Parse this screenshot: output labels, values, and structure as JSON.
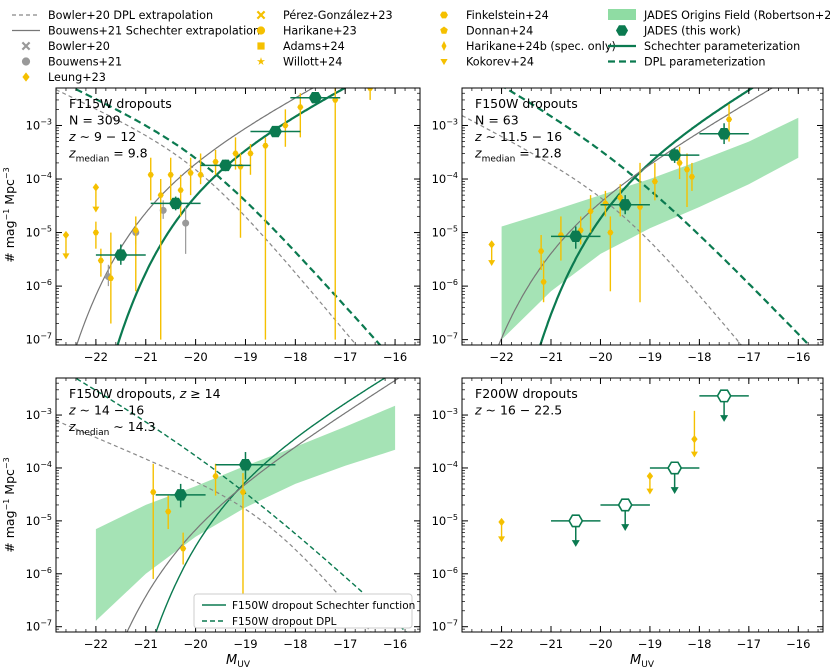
{
  "legend": {
    "columns": [
      [
        {
          "label": "Bowler+20 DPL extrapolation",
          "kind": "line",
          "color": "#888888",
          "dash": "4,3"
        },
        {
          "label": "Bouwens+21 Schechter extrapolation",
          "kind": "line",
          "color": "#777777",
          "dash": ""
        },
        {
          "label": "Bowler+20",
          "kind": "marker",
          "marker": "x",
          "color": "#999999"
        },
        {
          "label": "Bouwens+21",
          "kind": "marker",
          "marker": "circle",
          "color": "#999999"
        },
        {
          "label": "Leung+23",
          "kind": "marker",
          "marker": "diamond",
          "color": "#f5c000"
        }
      ],
      [
        {
          "label": "Pérez-González+23",
          "kind": "marker",
          "marker": "x",
          "color": "#f5c000"
        },
        {
          "label": "Harikane+23",
          "kind": "marker",
          "marker": "circle",
          "color": "#f5c000"
        },
        {
          "label": "Adams+24",
          "kind": "marker",
          "marker": "square",
          "color": "#f5c000"
        },
        {
          "label": "Willott+24",
          "kind": "marker",
          "marker": "star",
          "color": "#f5c000"
        }
      ],
      [
        {
          "label": "Finkelstein+24",
          "kind": "marker",
          "marker": "hexagon",
          "color": "#f5c000"
        },
        {
          "label": "Donnan+24",
          "kind": "marker",
          "marker": "pentagon",
          "color": "#f5c000"
        },
        {
          "label": "Harikane+24b (spec. only)",
          "kind": "marker",
          "marker": "thin-diamond",
          "color": "#f5c000"
        },
        {
          "label": "Kokorev+24",
          "kind": "marker",
          "marker": "triangle-down",
          "color": "#f5c000"
        }
      ],
      [
        {
          "label": "JADES Origins Field (Robertson+24)",
          "kind": "band",
          "color": "#8fdca3"
        },
        {
          "label": "JADES (this work)",
          "kind": "marker",
          "marker": "hexagon",
          "color": "#0b7a50"
        },
        {
          "label": "Schechter parameterization",
          "kind": "line",
          "color": "#0b7a50",
          "dash": ""
        },
        {
          "label": "DPL parameterization",
          "kind": "line",
          "color": "#0b7a50",
          "dash": "7,4"
        }
      ]
    ]
  },
  "colors": {
    "jades": "#0b7a50",
    "lit": "#f5c000",
    "band": "#8fdca3",
    "grey": "#888888"
  },
  "axes": {
    "xlabel": "M",
    "xlabel_sub": "UV",
    "ylabel": "#  mag",
    "ylabel_sup1": "−1",
    "ylabel_mid": " Mpc",
    "ylabel_sup2": "−3"
  },
  "chart_data": [
    {
      "type": "scatter",
      "panel": "top-left",
      "title_lines": [
        "F115W dropouts",
        "N = 309",
        "z ∼ 9 − 12",
        "z_median = 9.8"
      ],
      "xlim": [
        -22.8,
        -15.5
      ],
      "ylim_log10": [
        -7.1,
        -2.3
      ],
      "xticks": [
        -22,
        -21,
        -20,
        -19,
        -18,
        -17,
        -16
      ],
      "yticks_log10": [
        -7,
        -6,
        -5,
        -4,
        -3
      ],
      "jades": [
        {
          "x": -21.5,
          "y": 3.8e-06,
          "xerr": 0.5,
          "ylo": 2.5e-06,
          "yhi": 6e-06
        },
        {
          "x": -20.4,
          "y": 3.5e-05,
          "xerr": 0.5,
          "ylo": 2.6e-05,
          "yhi": 4.7e-05
        },
        {
          "x": -19.4,
          "y": 0.00018,
          "xerr": 0.5,
          "ylo": 0.00014,
          "yhi": 0.00023
        },
        {
          "x": -18.4,
          "y": 0.00077,
          "xerr": 0.5,
          "ylo": 0.00062,
          "yhi": 0.00096
        },
        {
          "x": -17.6,
          "y": 0.0033,
          "xerr": 0.5,
          "ylo": 0.0028,
          "yhi": 0.0039
        }
      ],
      "literature": [
        {
          "x": -22.6,
          "y": 9e-06,
          "ylo": 4e-06,
          "yhi": 9e-06,
          "upper": true
        },
        {
          "x": -22.0,
          "y": 7e-05,
          "ylo": 3e-05,
          "yhi": 7e-05,
          "upper": true
        },
        {
          "x": -22.0,
          "y": 1e-05,
          "ylo": 5e-06,
          "yhi": 1.6e-05
        },
        {
          "x": -21.9,
          "y": 3e-06,
          "ylo": 1.5e-06,
          "yhi": 5e-06
        },
        {
          "x": -21.7,
          "y": 1.4e-06,
          "ylo": 2e-07,
          "yhi": 1e-05
        },
        {
          "x": -21.2,
          "y": 1.1e-05,
          "ylo": 8e-07,
          "yhi": 2e-05
        },
        {
          "x": -20.9,
          "y": 0.00012,
          "ylo": 4e-05,
          "yhi": 0.00025
        },
        {
          "x": -20.7,
          "y": 5e-05,
          "ylo": 1e-07,
          "yhi": 0.0001
        },
        {
          "x": -20.5,
          "y": 0.00012,
          "ylo": 4e-05,
          "yhi": 0.00025
        },
        {
          "x": -20.3,
          "y": 6.2e-05,
          "ylo": 2e-05,
          "yhi": 0.00012
        },
        {
          "x": -20.1,
          "y": 0.00013,
          "ylo": 5e-05,
          "yhi": 0.00025
        },
        {
          "x": -19.9,
          "y": 0.00012,
          "ylo": 8e-05,
          "yhi": 0.0003
        },
        {
          "x": -19.6,
          "y": 0.00021,
          "ylo": 0.00012,
          "yhi": 0.00035
        },
        {
          "x": -19.2,
          "y": 0.0003,
          "ylo": 0.00015,
          "yhi": 0.0006
        },
        {
          "x": -19.1,
          "y": 0.00017,
          "ylo": 8e-06,
          "yhi": 0.0003
        },
        {
          "x": -18.9,
          "y": 0.0003,
          "ylo": 0.00012,
          "yhi": 0.00045
        },
        {
          "x": -18.6,
          "y": 0.00042,
          "ylo": 1e-07,
          "yhi": 0.0006
        },
        {
          "x": -18.2,
          "y": 0.001,
          "ylo": 0.0004,
          "yhi": 0.002
        },
        {
          "x": -17.9,
          "y": 0.0022,
          "ylo": 0.0006,
          "yhi": 0.004
        },
        {
          "x": -17.2,
          "y": 0.003,
          "ylo": 1e-07,
          "yhi": 0.005
        },
        {
          "x": -16.5,
          "y": 0.005,
          "ylo": 0.003,
          "yhi": 0.008
        }
      ],
      "grey_points": [
        {
          "x": -21.75,
          "y": 1.5e-06,
          "ylo": 1e-06,
          "yhi": 2.5e-06
        },
        {
          "x": -21.2,
          "y": 1e-05,
          "ylo": 6e-06,
          "yhi": 1.6e-05
        },
        {
          "x": -20.65,
          "y": 2.6e-05,
          "ylo": 1.8e-05,
          "yhi": 4e-05
        },
        {
          "x": -20.2,
          "y": 1.5e-05,
          "ylo": 4e-06,
          "yhi": 3e-05
        }
      ],
      "curves": [
        {
          "name": "Schechter",
          "color": "#0b7a50",
          "dash": "",
          "width": 2.2,
          "phi": 0.00034,
          "M": -19.6,
          "a": -2.2,
          "kind": "schechter"
        },
        {
          "name": "DPL",
          "color": "#0b7a50",
          "dash": "7,4",
          "width": 2.2,
          "phi": 0.00035,
          "M": -19.8,
          "a": -2.1,
          "b": -3.6,
          "kind": "dpl"
        },
        {
          "name": "Bowler+20 DPL",
          "color": "#888888",
          "dash": "4,3",
          "width": 1.2,
          "phi": 0.00025,
          "M": -19.9,
          "a": -2.1,
          "b": -3.8,
          "kind": "dpl"
        },
        {
          "name": "Bouwens+21",
          "color": "#777777",
          "dash": "",
          "width": 1.2,
          "phi": 0.00022,
          "M": -20.5,
          "a": -2.25,
          "kind": "schechter"
        }
      ]
    },
    {
      "type": "scatter",
      "panel": "top-right",
      "title_lines": [
        "F150W dropouts",
        "N = 63",
        "z ∼ 11.5 − 16",
        "z_median = 12.8"
      ],
      "xlim": [
        -22.8,
        -15.5
      ],
      "ylim_log10": [
        -7.1,
        -2.3
      ],
      "xticks": [
        -22,
        -21,
        -20,
        -19,
        -18,
        -17,
        -16
      ],
      "yticks_log10": [
        -7,
        -6,
        -5,
        -4,
        -3
      ],
      "band": {
        "x": [
          -22,
          -21,
          -20,
          -19,
          -18,
          -17,
          -16
        ],
        "lo": [
          1e-07,
          8e-07,
          4e-06,
          1.2e-05,
          3e-05,
          8e-05,
          0.00025
        ],
        "hi": [
          1.3e-05,
          2.5e-05,
          5e-05,
          0.0001,
          0.00022,
          0.0005,
          0.0014
        ]
      },
      "jades": [
        {
          "x": -20.5,
          "y": 8.5e-06,
          "xerr": 0.5,
          "ylo": 5e-06,
          "yhi": 1.3e-05
        },
        {
          "x": -19.5,
          "y": 3.3e-05,
          "xerr": 0.5,
          "ylo": 2.2e-05,
          "yhi": 5e-05
        },
        {
          "x": -18.5,
          "y": 0.00028,
          "xerr": 0.5,
          "ylo": 0.0002,
          "yhi": 0.00038
        },
        {
          "x": -17.5,
          "y": 0.0007,
          "xerr": 0.5,
          "ylo": 0.00045,
          "yhi": 0.0011
        }
      ],
      "literature": [
        {
          "x": -22.2,
          "y": 6e-06,
          "ylo": 3e-06,
          "yhi": 6e-06,
          "upper": true
        },
        {
          "x": -21.2,
          "y": 4.5e-06,
          "ylo": 2e-06,
          "yhi": 9e-06
        },
        {
          "x": -21.15,
          "y": 1.2e-06,
          "ylo": 5e-07,
          "yhi": 3e-06
        },
        {
          "x": -20.8,
          "y": 9e-06,
          "ylo": 3e-06,
          "yhi": 2e-05
        },
        {
          "x": -20.4,
          "y": 1.1e-05,
          "ylo": 6e-06,
          "yhi": 2e-05
        },
        {
          "x": -20.2,
          "y": 2.5e-05,
          "ylo": 1e-05,
          "yhi": 5e-05
        },
        {
          "x": -19.9,
          "y": 3.5e-05,
          "ylo": 2e-05,
          "yhi": 6e-05
        },
        {
          "x": -19.8,
          "y": 1e-05,
          "ylo": 8e-07,
          "yhi": 2e-05
        },
        {
          "x": -19.6,
          "y": 4.5e-05,
          "ylo": 2e-05,
          "yhi": 8e-05
        },
        {
          "x": -19.2,
          "y": 3e-05,
          "ylo": 5e-07,
          "yhi": 0.0002
        },
        {
          "x": -18.9,
          "y": 9e-05,
          "ylo": 4e-05,
          "yhi": 0.0002
        },
        {
          "x": -18.4,
          "y": 0.0002,
          "ylo": 0.0001,
          "yhi": 0.0004
        },
        {
          "x": -18.25,
          "y": 0.00015,
          "ylo": 3e-05,
          "yhi": 0.0003
        },
        {
          "x": -18.15,
          "y": 0.00011,
          "ylo": 6e-05,
          "yhi": 0.0002
        },
        {
          "x": -17.4,
          "y": 0.0013,
          "ylo": 0.0005,
          "yhi": 0.0025
        }
      ],
      "grey_points": [],
      "curves": [
        {
          "name": "Schechter",
          "color": "#0b7a50",
          "dash": "",
          "width": 2.2,
          "phi": 0.00032,
          "M": -19.3,
          "a": -2.35,
          "kind": "schechter"
        },
        {
          "name": "DPL",
          "color": "#0b7a50",
          "dash": "7,4",
          "width": 2.2,
          "phi": 0.0003,
          "M": -19.5,
          "a": -2.3,
          "b": -3.4,
          "kind": "dpl"
        },
        {
          "name": "Bowler+20 DPL",
          "color": "#888888",
          "dash": "4,3",
          "width": 1.2,
          "phi": 4.5e-05,
          "M": -19.6,
          "a": -2.2,
          "b": -3.8,
          "kind": "dpl"
        },
        {
          "name": "Bouwens+21",
          "color": "#777777",
          "dash": "",
          "width": 1.2,
          "phi": 4e-05,
          "M": -20.5,
          "a": -2.35,
          "kind": "schechter"
        }
      ]
    },
    {
      "type": "scatter",
      "panel": "bottom-left",
      "title_lines": [
        "F150W dropouts, z ≥ 14",
        "z ∼ 14 − 16",
        "z_median ∼ 14.3"
      ],
      "xlim": [
        -22.8,
        -15.5
      ],
      "ylim_log10": [
        -7.1,
        -2.3
      ],
      "xticks": [
        -22,
        -21,
        -20,
        -19,
        -18,
        -17,
        -16
      ],
      "yticks_log10": [
        -7,
        -6,
        -5,
        -4,
        -3
      ],
      "band": {
        "x": [
          -22,
          -21,
          -20,
          -19,
          -18,
          -17,
          -16
        ],
        "lo": [
          1.3e-07,
          1e-06,
          5e-06,
          1.8e-05,
          5e-05,
          0.00011,
          0.00022
        ],
        "hi": [
          7e-06,
          2e-05,
          4.5e-05,
          0.00011,
          0.00025,
          0.0006,
          0.0015
        ]
      },
      "jades": [
        {
          "x": -20.3,
          "y": 3.1e-05,
          "xerr": 0.5,
          "ylo": 1.8e-05,
          "yhi": 5e-05
        },
        {
          "x": -19.0,
          "y": 0.000115,
          "xerr": 0.6,
          "ylo": 6e-05,
          "yhi": 0.0002
        }
      ],
      "literature": [
        {
          "x": -20.85,
          "y": 3.5e-05,
          "ylo": 8e-07,
          "yhi": 0.00012
        },
        {
          "x": -20.55,
          "y": 1.5e-05,
          "ylo": 7e-06,
          "yhi": 3e-05
        },
        {
          "x": -20.25,
          "y": 3e-06,
          "ylo": 1.5e-06,
          "yhi": 6e-06
        },
        {
          "x": -19.6,
          "y": 7e-05,
          "ylo": 3e-05,
          "yhi": 0.00012
        },
        {
          "x": -19.05,
          "y": 3.5e-05,
          "ylo": 1e-07,
          "yhi": 8e-05
        }
      ],
      "grey_points": [],
      "curves": [
        {
          "name": "F150W dropout Schechter function",
          "color": "#0b7a50",
          "dash": "",
          "width": 1.4,
          "phi": 0.00016,
          "M": -19.0,
          "a": -2.4,
          "kind": "schechter"
        },
        {
          "name": "F150W dropout DPL",
          "color": "#0b7a50",
          "dash": "5,3",
          "width": 1.4,
          "phi": 0.00013,
          "M": -19.4,
          "a": -2.35,
          "b": -3.2,
          "kind": "dpl"
        },
        {
          "name": "Bowler+20 DPL",
          "color": "#888888",
          "dash": "4,3",
          "width": 1.2,
          "phi": 1.5e-05,
          "M": -18.5,
          "a": -2.0,
          "b": -3.8,
          "kind": "dpl"
        },
        {
          "name": "Bouwens+21",
          "color": "#777777",
          "dash": "",
          "width": 1.2,
          "phi": 2e-05,
          "M": -20.0,
          "a": -2.5,
          "kind": "schechter"
        }
      ],
      "inner_legend": [
        {
          "label": "F150W dropout Schechter function",
          "dash": ""
        },
        {
          "label": "F150W dropout DPL",
          "dash": "5,3"
        }
      ]
    },
    {
      "type": "scatter",
      "panel": "bottom-right",
      "title_lines": [
        "F200W dropouts",
        "z ∼ 16 − 22.5"
      ],
      "xlim": [
        -22.8,
        -15.5
      ],
      "ylim_log10": [
        -7.1,
        -2.3
      ],
      "xticks": [
        -22,
        -21,
        -20,
        -19,
        -18,
        -17,
        -16
      ],
      "yticks_log10": [
        -7,
        -6,
        -5,
        -4,
        -3
      ],
      "jades_upper": [
        {
          "x": -20.5,
          "y": 1e-05,
          "xerr": 0.5
        },
        {
          "x": -19.5,
          "y": 2e-05,
          "xerr": 0.5
        },
        {
          "x": -18.5,
          "y": 0.0001,
          "xerr": 0.5
        },
        {
          "x": -17.5,
          "y": 0.0023,
          "xerr": 0.5
        }
      ],
      "literature": [
        {
          "x": -22.0,
          "y": 9.5e-06,
          "ylo": 5e-06,
          "yhi": 9.5e-06,
          "upper": true
        },
        {
          "x": -19.0,
          "y": 7e-05,
          "ylo": 4e-05,
          "yhi": 7e-05,
          "upper": true
        },
        {
          "x": -18.1,
          "y": 0.00035,
          "ylo": 0.0002,
          "yhi": 0.0012,
          "upper": true
        }
      ],
      "grey_points": [],
      "curves": []
    }
  ]
}
